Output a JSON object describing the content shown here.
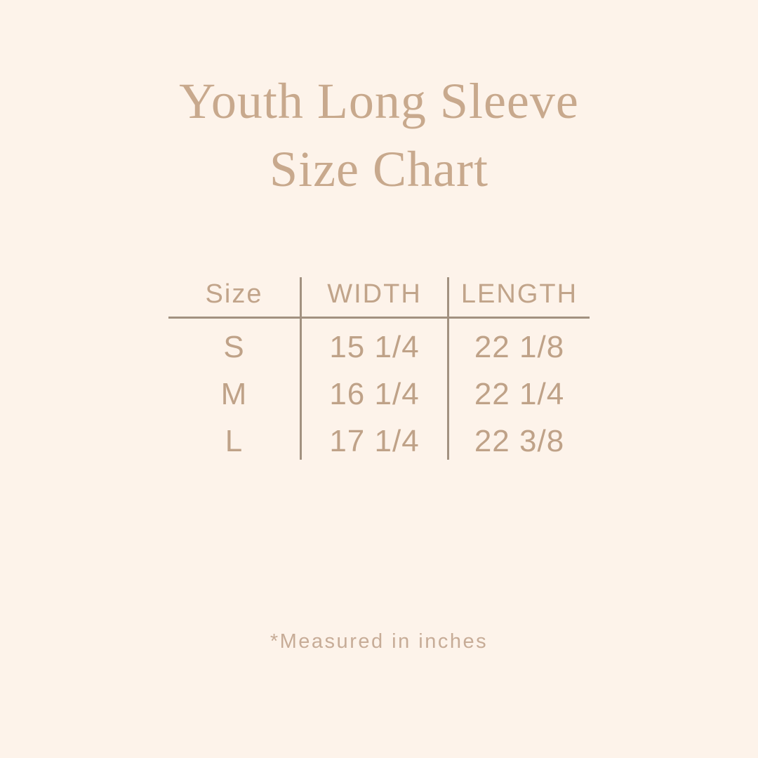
{
  "canvas": {
    "background_color": "#fdf3ea",
    "title_color": "#c8a98d",
    "table_text_color": "#bfa288",
    "rule_color": "#a29180",
    "footnote_color": "#c7ac97"
  },
  "title": {
    "line1": "Youth Long Sleeve",
    "line2": "Size Chart"
  },
  "size_chart": {
    "columns": {
      "size": "Size",
      "width": "WIDTH",
      "length": "LENGTH"
    },
    "rows": [
      {
        "size": "S",
        "width": "15 1/4",
        "length": "22 1/8"
      },
      {
        "size": "M",
        "width": "16 1/4",
        "length": "22 1/4"
      },
      {
        "size": "L",
        "width": "17 1/4",
        "length": "22 3/8"
      }
    ],
    "units_note": "*Measured in inches"
  }
}
